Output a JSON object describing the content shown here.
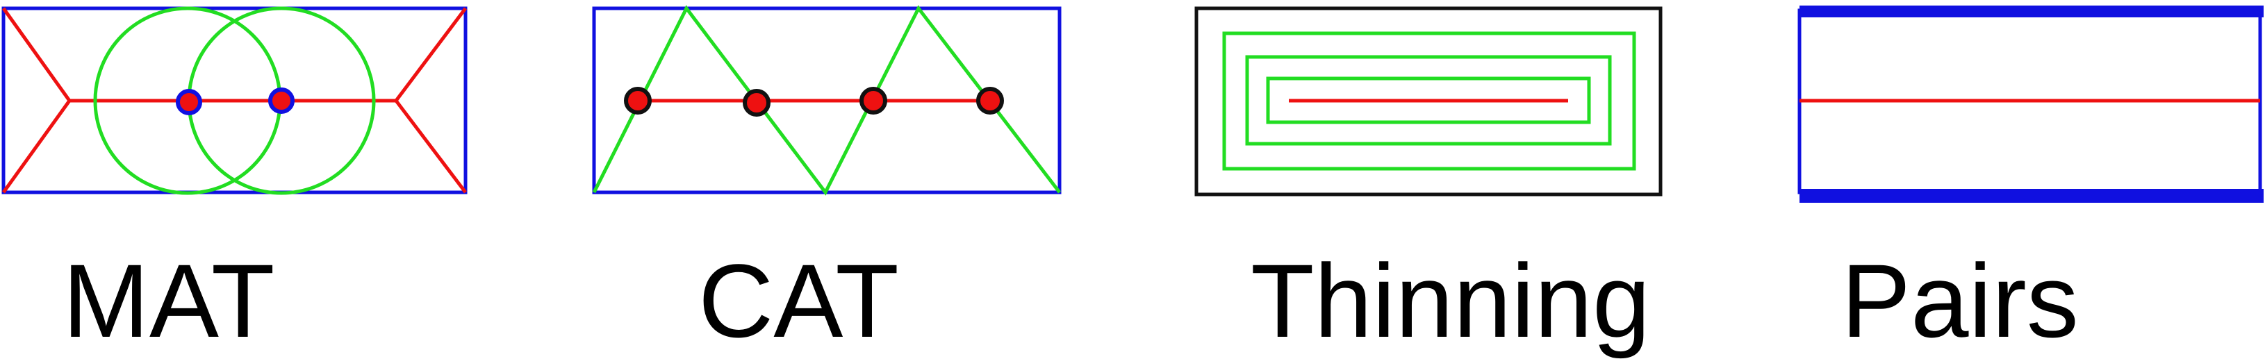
{
  "colors": {
    "frame_blue": "#1010e0",
    "frame_black": "#111111",
    "axis_red": "#ee1111",
    "construct_green": "#22dd22",
    "node_fill": "#ee1111",
    "node_ring_blue": "#1010e0",
    "node_ring_black": "#111111"
  },
  "panels": [
    {
      "id": "mat",
      "label": "MAT",
      "icon": "medial-axis-transform-diagram"
    },
    {
      "id": "cat",
      "label": "CAT",
      "icon": "chordal-axis-transform-diagram"
    },
    {
      "id": "thinning",
      "label": "Thinning",
      "icon": "thinning-diagram"
    },
    {
      "id": "pairs",
      "label": "Pairs",
      "icon": "edge-pairs-diagram"
    }
  ]
}
